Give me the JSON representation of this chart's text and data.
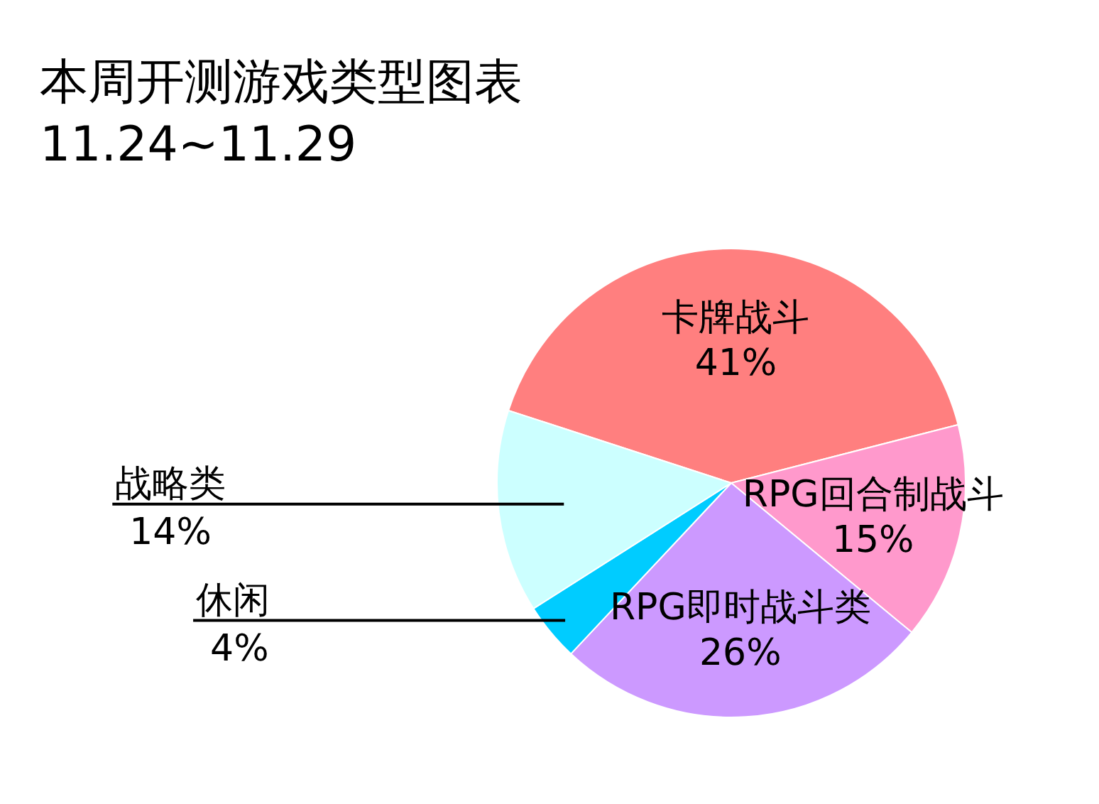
{
  "chart_data": {
    "type": "pie",
    "title": "本周开测游戏类型图表",
    "subtitle": "11.24~11.29",
    "categories": [
      "卡牌战斗",
      "RPG回合制战斗",
      "RPG即时战斗类",
      "休闲",
      "战略类"
    ],
    "values": [
      41,
      15,
      26,
      4,
      14
    ],
    "colors": [
      "#ff7f7f",
      "#ff99cc",
      "#cc99ff",
      "#00ccff",
      "#ccffff"
    ],
    "value_labels": [
      "41%",
      "15%",
      "26%",
      "4%",
      "14%"
    ]
  }
}
